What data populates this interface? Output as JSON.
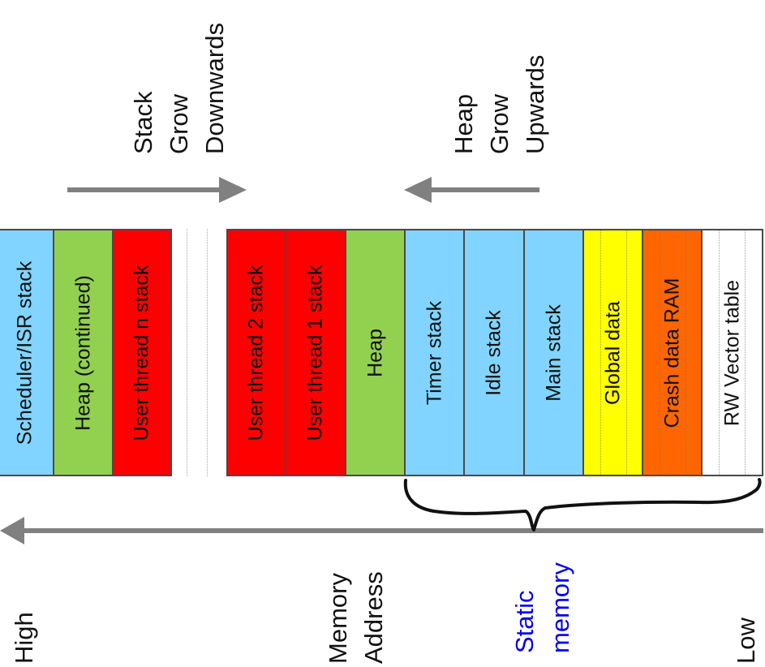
{
  "annotations": {
    "stack_grow": [
      "Stack",
      "Grow",
      "Downwards"
    ],
    "heap_grow": [
      "Heap",
      "Grow",
      "Upwards"
    ],
    "high": "High",
    "memory_address": [
      "Memory",
      "Address"
    ],
    "static_memory": [
      "Static",
      "memory"
    ],
    "low": "Low"
  },
  "blocks": [
    {
      "label": "Scheduler/ISR stack",
      "color": "#80d4ff"
    },
    {
      "label": "Heap (continued)",
      "color": "#92d050"
    },
    {
      "label": "User thread n stack",
      "color": "#ff0000"
    },
    {
      "label": "User thread 2 stack",
      "color": "#ff0000"
    },
    {
      "label": "User thread 1 stack",
      "color": "#ff0000"
    },
    {
      "label": "Heap",
      "color": "#92d050"
    },
    {
      "label": "Timer stack",
      "color": "#80d4ff"
    },
    {
      "label": "Idle stack",
      "color": "#80d4ff"
    },
    {
      "label": "Main stack",
      "color": "#80d4ff"
    },
    {
      "label": "Global data",
      "color": "#ffff00"
    },
    {
      "label": "Crash data RAM",
      "color": "#ff6600"
    },
    {
      "label": "RW Vector table",
      "color": "#ffffff"
    }
  ],
  "colors": {
    "arrow": "#808080",
    "brace": "#111111",
    "static_text": "#0000ee"
  }
}
